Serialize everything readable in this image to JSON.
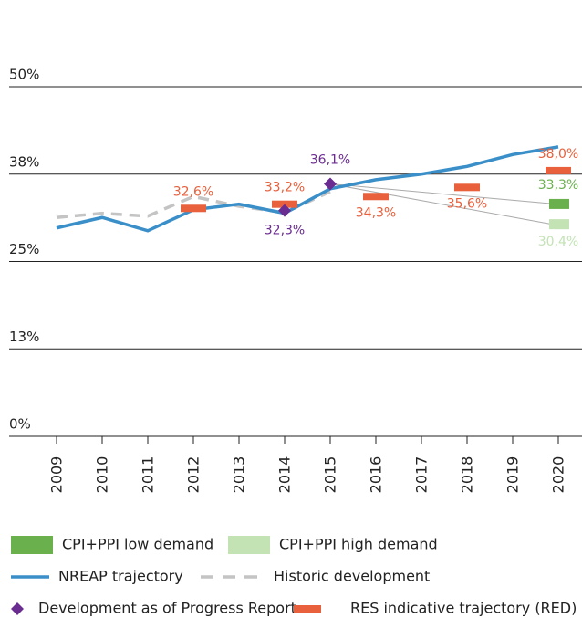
{
  "chart_data": {
    "type": "line",
    "categories": [
      "2009",
      "2010",
      "2011",
      "2012",
      "2013",
      "2014",
      "2015",
      "2016",
      "2017",
      "2018",
      "2019",
      "2020"
    ],
    "ylim": [
      0,
      50
    ],
    "yticks": [
      {
        "value": 0,
        "label": "0%"
      },
      {
        "value": 12.5,
        "label": "13%"
      },
      {
        "value": 25,
        "label": "25%"
      },
      {
        "value": 37.5,
        "label": "38%"
      },
      {
        "value": 50,
        "label": "50%"
      }
    ],
    "grid": true,
    "series": [
      {
        "name": "CPI+PPI low demand",
        "color": "#6ab04c",
        "kind": "box",
        "values": [
          null,
          null,
          null,
          null,
          null,
          null,
          null,
          null,
          null,
          null,
          null,
          33.3
        ],
        "value_labels": [
          null,
          null,
          null,
          null,
          null,
          null,
          null,
          null,
          null,
          null,
          null,
          "33,3%"
        ]
      },
      {
        "name": "CPI+PPI high demand",
        "color": "#c3e3b5",
        "kind": "box",
        "values": [
          null,
          null,
          null,
          null,
          null,
          null,
          null,
          null,
          null,
          null,
          null,
          30.4
        ],
        "value_labels": [
          null,
          null,
          null,
          null,
          null,
          null,
          null,
          null,
          null,
          null,
          null,
          "30,4%"
        ]
      },
      {
        "name": "NREAP trajectory",
        "color": "#3a8fc9",
        "kind": "line",
        "values": [
          29.8,
          31.3,
          29.4,
          32.4,
          33.2,
          31.9,
          35.4,
          36.7,
          37.5,
          38.6,
          40.3,
          41.4
        ]
      },
      {
        "name": "Historic development",
        "color": "#c4c4c4",
        "kind": "dashed",
        "values": [
          31.3,
          31.9,
          31.5,
          34.3,
          32.9,
          32.0,
          35.0,
          null,
          null,
          null,
          null,
          null
        ]
      },
      {
        "name": "Development as of Progress Report",
        "color": "#6b2c91",
        "kind": "diamond",
        "values": [
          null,
          null,
          null,
          null,
          null,
          32.3,
          36.1,
          null,
          null,
          null,
          null,
          null
        ],
        "value_labels": [
          null,
          null,
          null,
          null,
          null,
          "32,3%",
          "36,1%",
          null,
          null,
          null,
          null,
          null
        ]
      },
      {
        "name": "RES indicative trajectory (RED)",
        "color": "#e8603c",
        "kind": "dash",
        "values": [
          null,
          null,
          null,
          32.6,
          null,
          33.2,
          null,
          34.3,
          null,
          35.6,
          null,
          38.0
        ],
        "value_labels": [
          null,
          null,
          null,
          "32,6%",
          null,
          "33,2%",
          null,
          "34,3%",
          null,
          "35,6%",
          null,
          "38,0%"
        ]
      }
    ]
  }
}
